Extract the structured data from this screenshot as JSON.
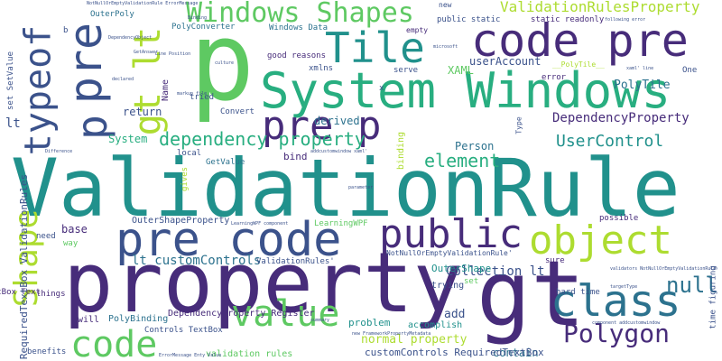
{
  "palette": {
    "dark_purple": "#472c7a",
    "indigo": "#3b528b",
    "blue": "#2c728e",
    "teal": "#21918c",
    "green": "#28ae80",
    "light_green": "#5ec962",
    "lime": "#addc30",
    "navy": "#440154"
  },
  "words": [
    {
      "text": "ValidationRule",
      "color": "#21918c"
    },
    {
      "text": "property",
      "color": "#472c7a"
    },
    {
      "text": "p",
      "color": "#5ec962"
    },
    {
      "text": "gt",
      "color": "#472c7a"
    },
    {
      "text": "System Windows",
      "color": "#28ae80"
    },
    {
      "text": "code pre",
      "color": "#472c7a"
    },
    {
      "text": "pre code",
      "color": "#3b528b"
    },
    {
      "text": "public",
      "color": "#472c7a"
    },
    {
      "text": "pre p",
      "color": "#472c7a"
    },
    {
      "text": "Tile",
      "color": "#21918c"
    },
    {
      "text": "object",
      "color": "#addc30"
    },
    {
      "text": "class",
      "color": "#2c728e"
    },
    {
      "text": "value",
      "color": "#5ec962"
    },
    {
      "text": "code",
      "color": "#5ec962"
    },
    {
      "text": "Polygon",
      "color": "#472c7a"
    },
    {
      "text": "Windows Shapes",
      "color": "#5ec962"
    },
    {
      "text": "typeof",
      "color": "#3b528b"
    },
    {
      "text": "pre",
      "color": "#3b528b"
    },
    {
      "text": "p",
      "color": "#3b528b"
    },
    {
      "text": "gt lt",
      "color": "#addc30"
    },
    {
      "text": "Shape",
      "color": "#addc30"
    },
    {
      "text": "dependency property",
      "color": "#28ae80"
    },
    {
      "text": "UserControl",
      "color": "#21918c"
    },
    {
      "text": "element",
      "color": "#28ae80"
    },
    {
      "text": "null",
      "color": "#2c728e"
    },
    {
      "text": "ValidationRulesProperty",
      "color": "#addc30"
    },
    {
      "text": "DependencyProperty",
      "color": "#472c7a"
    },
    {
      "text": "lt customControls",
      "color": "#2c728e"
    },
    {
      "text": "Collection lt",
      "color": "#3b528b"
    },
    {
      "text": "OuterShape",
      "color": "#21918c"
    },
    {
      "text": "normal property",
      "color": "#addc30"
    },
    {
      "text": "add",
      "color": "#3b528b"
    },
    {
      "text": "contain",
      "color": "#2c728e"
    },
    {
      "text": "customControls RequiredTextBox",
      "color": "#3b528b"
    },
    {
      "text": "PolyTile",
      "color": "#2c728e"
    },
    {
      "text": "userAccount",
      "color": "#3b528b"
    },
    {
      "text": "XAML",
      "color": "#5ec962"
    },
    {
      "text": "System",
      "color": "#28ae80"
    },
    {
      "text": "Person",
      "color": "#2c728e"
    },
    {
      "text": "derived",
      "color": "#2c728e"
    },
    {
      "text": "return",
      "color": "#3b528b"
    },
    {
      "text": "lt",
      "color": "#3b528b"
    },
    {
      "text": "base",
      "color": "#472c7a"
    },
    {
      "text": "RequiredTextBox ValidationRules",
      "color": "#3b528b"
    },
    {
      "text": "OuterShapeProperty",
      "color": "#3b528b"
    },
    {
      "text": "DependencyProperty Register",
      "color": "#472c7a"
    },
    {
      "text": "PolyBinding",
      "color": "#2c728e"
    },
    {
      "text": "Controls TextBox",
      "color": "#3b528b"
    },
    {
      "text": "TextBox Text",
      "color": "#472c7a"
    },
    {
      "text": "validation rules",
      "color": "#5ec962"
    },
    {
      "text": "problem",
      "color": "#21918c"
    },
    {
      "text": "accomplish",
      "color": "#21918c"
    },
    {
      "text": "trying",
      "color": "#3b528b"
    },
    {
      "text": "sure",
      "color": "#472c7a"
    },
    {
      "text": "set",
      "color": "#5ec962"
    },
    {
      "text": "hard time",
      "color": "#3b528b"
    },
    {
      "text": "time figuring",
      "color": "#3b528b"
    },
    {
      "text": "possible",
      "color": "#472c7a"
    },
    {
      "text": "will",
      "color": "#472c7a"
    },
    {
      "text": "need",
      "color": "#3b528b"
    },
    {
      "text": "things",
      "color": "#472c7a"
    },
    {
      "text": "way",
      "color": "#5ec962"
    },
    {
      "text": "benefits",
      "color": "#3b528b"
    },
    {
      "text": "GetValue",
      "color": "#2c728e"
    },
    {
      "text": "bind",
      "color": "#472c7a"
    },
    {
      "text": "binding",
      "color": "#addc30"
    },
    {
      "text": "local",
      "color": "#3b528b"
    },
    {
      "text": "gives",
      "color": "#addc30"
    },
    {
      "text": "LearningWPF",
      "color": "#5ec962"
    },
    {
      "text": "ValidationRules'",
      "color": "#3b528b"
    },
    {
      "text": "NotNullOrEmptyValidationRule'",
      "color": "#3b528b"
    },
    {
      "text": "Name",
      "color": "#472c7a"
    },
    {
      "text": "tried",
      "color": "#3b528b"
    },
    {
      "text": "Convert",
      "color": "#3b528b"
    },
    {
      "text": "xmlns",
      "color": "#3b528b"
    },
    {
      "text": "serve",
      "color": "#3b528b"
    },
    {
      "text": "good reasons",
      "color": "#472c7a"
    },
    {
      "text": "PolyConverter",
      "color": "#2c728e"
    },
    {
      "text": "Windows Data",
      "color": "#2c728e"
    },
    {
      "text": "public static",
      "color": "#3b528b"
    },
    {
      "text": "static readonly",
      "color": "#472c7a"
    },
    {
      "text": "OuterPoly",
      "color": "#2c728e"
    },
    {
      "text": "set SetValue",
      "color": "#3b528b"
    },
    {
      "text": "new",
      "color": "#3b528b"
    },
    {
      "text": "empty",
      "color": "#472c7a"
    },
    {
      "text": "error",
      "color": "#472c7a"
    },
    {
      "text": "One",
      "color": "#3b528b"
    },
    {
      "text": "__PolyTile__",
      "color": "#addc30"
    },
    {
      "text": "Type",
      "color": "#3b528b"
    },
    {
      "text": "b",
      "color": "#3b528b"
    },
    {
      "text": "NotNullOrEmptyValidationRule ErrorMessage",
      "color": "#3b528b"
    },
    {
      "text": "following error",
      "color": "#3b528b"
    },
    {
      "text": "component addcustomwindow",
      "color": "#3b528b"
    },
    {
      "text": "LearningWPF component",
      "color": "#3b528b"
    },
    {
      "text": "validators NotNullOrEmptyValidationRule",
      "color": "#3b528b"
    },
    {
      "text": "markup file",
      "color": "#3b528b"
    },
    {
      "text": "Line Position",
      "color": "#3b528b"
    },
    {
      "text": "xaml' line",
      "color": "#3b528b"
    },
    {
      "text": "new FrameworkPropertyMetadata",
      "color": "#3b528b"
    },
    {
      "text": "ErrorMessage Enty Value",
      "color": "#3b528b"
    },
    {
      "text": "addcustomwindow xaml'",
      "color": "#3b528b"
    },
    {
      "text": "Binding",
      "color": "#3b528b"
    },
    {
      "text": "x",
      "color": "#3b528b"
    },
    {
      "text": "culture",
      "color": "#3b528b"
    },
    {
      "text": "declared",
      "color": "#3b528b"
    },
    {
      "text": "parameter",
      "color": "#3b528b"
    },
    {
      "text": "summary",
      "color": "#3b528b"
    },
    {
      "text": "targetType",
      "color": "#3b528b"
    },
    {
      "text": "microsoft",
      "color": "#3b528b"
    },
    {
      "text": "GetAnswer",
      "color": "#3b528b"
    },
    {
      "text": "Difference",
      "color": "#3b528b"
    },
    {
      "text": "DependencyObject",
      "color": "#3b528b"
    }
  ]
}
